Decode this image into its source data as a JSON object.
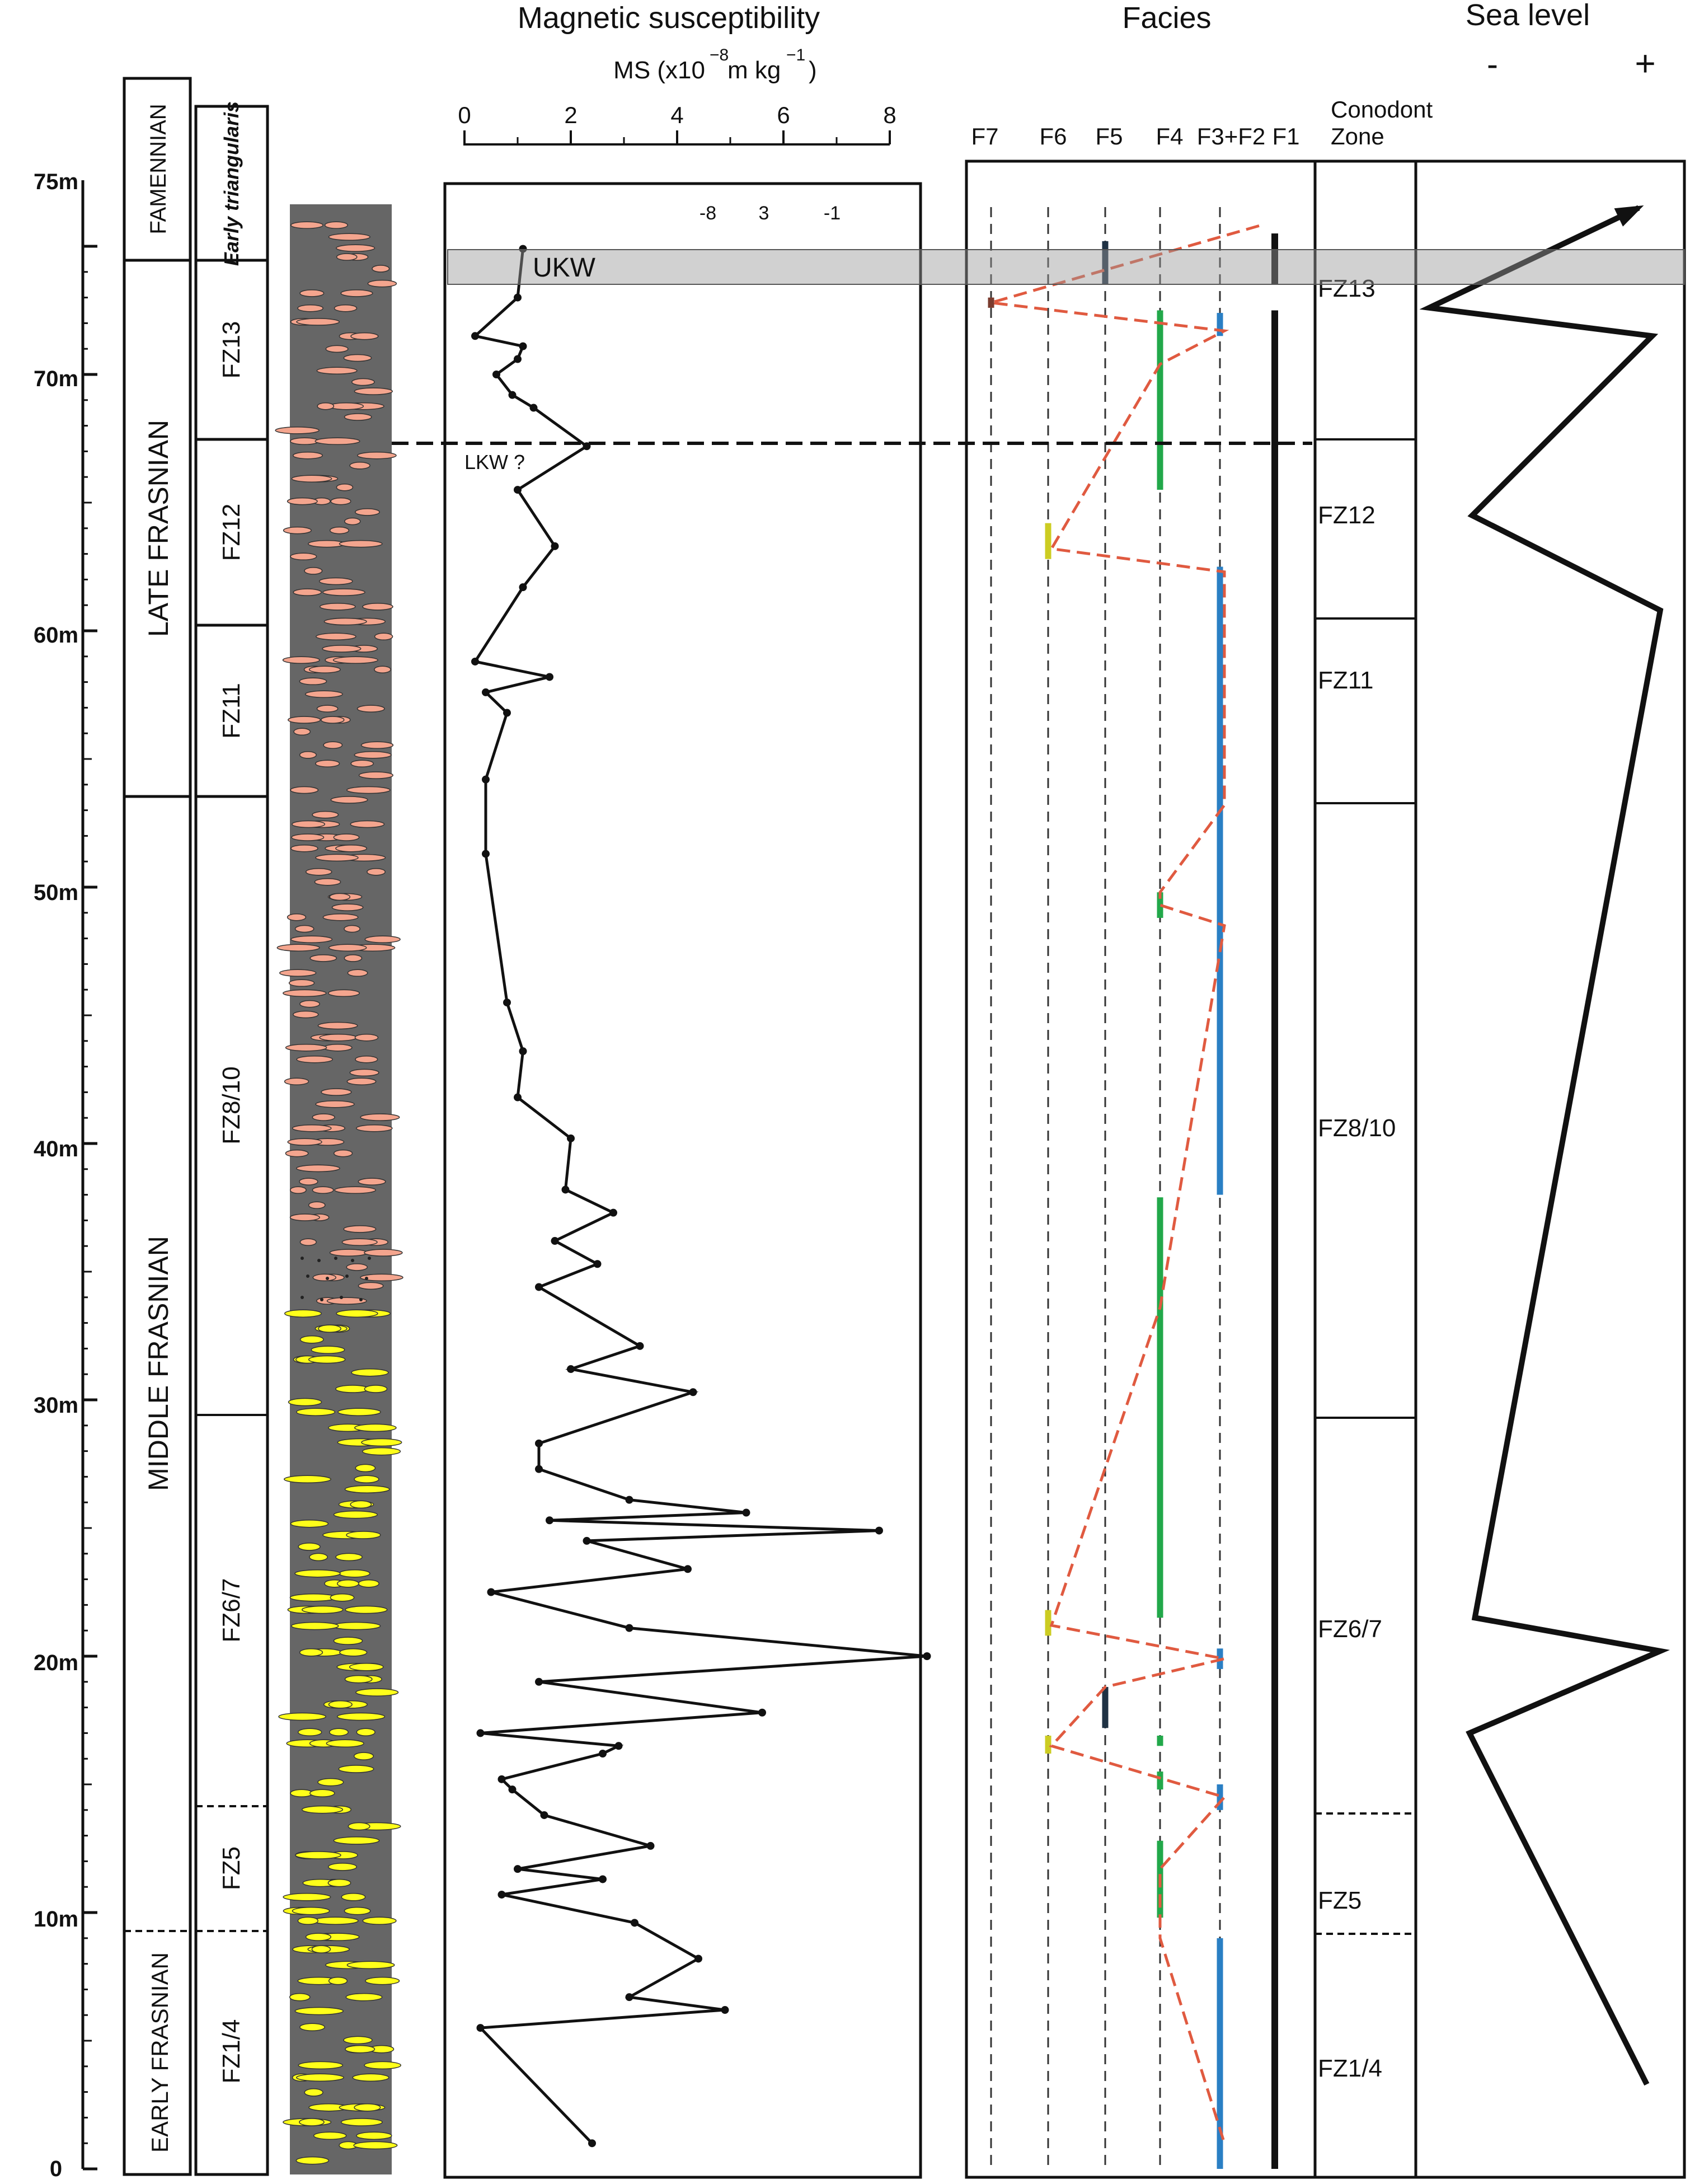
{
  "ms_panel": {
    "title": "Magnetic susceptibility",
    "axis_label": "MS (x10",
    "axis_label_exp": "−8",
    "axis_label_unit": "m kg",
    "axis_label_unit_exp": "−1",
    "axis_label_close": ")",
    "ticks": [
      "0",
      "2",
      "4",
      "6",
      "8"
    ],
    "inner_labels": [
      "-8",
      "3",
      "-1"
    ]
  },
  "facies_panel": {
    "title": "Facies",
    "columns": [
      "F7",
      "F6",
      "F5",
      "F4",
      "F3+F2",
      "F1"
    ],
    "colors": {
      "F7": "#7a3b2e",
      "F6": "#cccc22",
      "F5": "#1f3244",
      "F4": "#22a84a",
      "F3": "#2a7fc4",
      "F1": "#111111",
      "trend": "#e05a40"
    }
  },
  "conodont": {
    "header": [
      "Conodont",
      "Zone"
    ],
    "zones": [
      "FZ13",
      "FZ12",
      "FZ11",
      "FZ8/10",
      "FZ6/7",
      "FZ5",
      "FZ1/4"
    ]
  },
  "sea_level": {
    "title": "Sea level",
    "minus": "-",
    "plus": "+"
  },
  "depth_axis": {
    "ticks": [
      "75m",
      "70m",
      "60m",
      "50m",
      "40m",
      "30m",
      "20m",
      "10m",
      "0"
    ]
  },
  "stratigraphy": {
    "stages": [
      "FAMENNIAN",
      "LATE FRASNIAN",
      "MIDDLE FRASNIAN",
      "EARLY FRASNIAN"
    ],
    "zones": [
      "Early triangularis",
      "FZ13",
      "FZ12",
      "FZ11",
      "FZ8/10",
      "FZ6/7",
      "FZ5",
      "FZ1/4"
    ]
  },
  "events": {
    "upper": "UKW",
    "lower": "LKW ?"
  },
  "chart_data": {
    "type": "line",
    "ms_profile": {
      "xlabel": "MS (x10−8 m kg−1)",
      "xlim": [
        0,
        8
      ],
      "ylim": [
        0,
        75
      ],
      "depth_m": [
        1.0,
        5.5,
        6.2,
        6.7,
        8.2,
        9.6,
        10.7,
        11.3,
        11.7,
        12.6,
        13.8,
        14.8,
        15.2,
        16.2,
        16.5,
        17.0,
        17.8,
        19.0,
        20.0,
        21.1,
        22.5,
        23.4,
        24.5,
        24.9,
        25.3,
        25.6,
        26.1,
        27.3,
        28.3,
        30.3,
        31.2,
        32.1,
        34.4,
        35.3,
        36.2,
        37.3,
        38.2,
        40.2,
        41.8,
        43.6,
        45.5,
        51.3,
        54.2,
        56.8,
        57.6,
        58.2,
        58.8,
        61.7,
        63.3,
        65.5,
        67.2,
        68.7,
        69.2,
        70.0,
        70.6,
        71.1,
        71.5,
        73.0,
        74.9
      ],
      "ms": [
        2.4,
        0.3,
        4.9,
        3.1,
        4.4,
        3.2,
        0.7,
        2.6,
        1.0,
        3.5,
        1.5,
        0.9,
        0.7,
        2.6,
        2.9,
        0.3,
        5.6,
        1.4,
        8.7,
        3.1,
        0.5,
        4.2,
        2.3,
        7.8,
        1.6,
        5.3,
        3.1,
        1.4,
        1.4,
        4.3,
        2.0,
        3.3,
        1.4,
        2.5,
        1.7,
        2.8,
        1.9,
        2.0,
        1.0,
        1.1,
        0.8,
        0.4,
        0.4,
        0.8,
        0.4,
        1.6,
        0.2,
        1.1,
        1.7,
        1.0,
        2.3,
        1.3,
        0.9,
        0.6,
        1.0,
        1.1,
        0.2,
        1.0,
        1.1
      ]
    },
    "sea_level_curve": {
      "depth_m": [
        76.5,
        72.6,
        71.5,
        64.5,
        60.8,
        21.5,
        20.2,
        17.0,
        3.3
      ],
      "level": [
        0.83,
        0.05,
        0.88,
        0.21,
        0.91,
        0.22,
        0.91,
        0.2,
        0.86
      ]
    },
    "facies_trend": {
      "depth_m": [
        75.8,
        72.8,
        71.7,
        70.4,
        63.2,
        62.3,
        53.2,
        49.8,
        49.3,
        48.5,
        33.6,
        21.2,
        19.9,
        18.8,
        16.5,
        14.5,
        11.7,
        9.0,
        1.0
      ],
      "facies": [
        "F1",
        "F7",
        "F3",
        "F4",
        "F6",
        "F3",
        "F3",
        "F4",
        "F4",
        "F3",
        "F4",
        "F6",
        "F3",
        "F5",
        "F6",
        "F3",
        "F4",
        "F4",
        "F3"
      ]
    },
    "facies_intervals": [
      {
        "facies": "F5",
        "from_m": 73.5,
        "to_m": 75.2
      },
      {
        "facies": "F1",
        "from_m": 73.5,
        "to_m": 75.5
      },
      {
        "facies": "F1",
        "from_m": 0.0,
        "to_m": 72.5
      },
      {
        "facies": "F7",
        "from_m": 72.6,
        "to_m": 73.0
      },
      {
        "facies": "F3",
        "from_m": 71.5,
        "to_m": 72.4
      },
      {
        "facies": "F4",
        "from_m": 65.5,
        "to_m": 72.5
      },
      {
        "facies": "F6",
        "from_m": 62.8,
        "to_m": 64.2
      },
      {
        "facies": "F3",
        "from_m": 38.0,
        "to_m": 62.5
      },
      {
        "facies": "F4",
        "from_m": 48.8,
        "to_m": 49.8
      },
      {
        "facies": "F4",
        "from_m": 21.5,
        "to_m": 37.9
      },
      {
        "facies": "F6",
        "from_m": 20.8,
        "to_m": 21.8
      },
      {
        "facies": "F3",
        "from_m": 19.5,
        "to_m": 20.3
      },
      {
        "facies": "F5",
        "from_m": 17.2,
        "to_m": 18.8
      },
      {
        "facies": "F4",
        "from_m": 16.5,
        "to_m": 16.9
      },
      {
        "facies": "F6",
        "from_m": 16.2,
        "to_m": 16.9
      },
      {
        "facies": "F4",
        "from_m": 14.8,
        "to_m": 15.5
      },
      {
        "facies": "F3",
        "from_m": 14.0,
        "to_m": 15.0
      },
      {
        "facies": "F4",
        "from_m": 9.8,
        "to_m": 12.8
      },
      {
        "facies": "F3",
        "from_m": 0.0,
        "to_m": 9.0
      }
    ]
  }
}
